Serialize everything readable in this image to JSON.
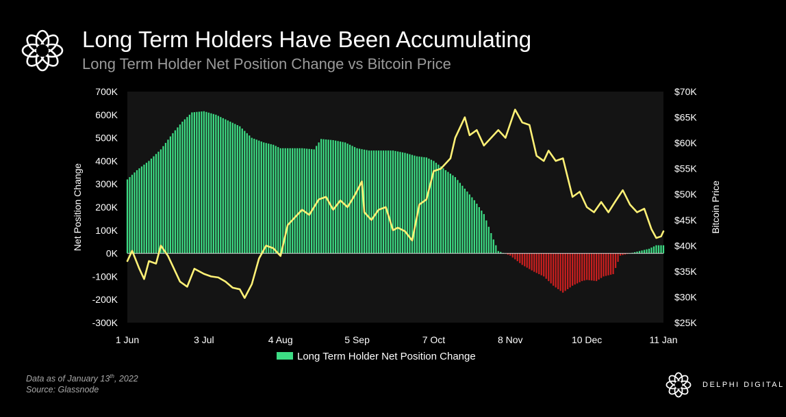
{
  "header": {
    "title": "Long Term Holders Have Been Accumulating",
    "subtitle": "Long Term Holder Net Position Change vs Bitcoin Price"
  },
  "footer": {
    "data_as_of_prefix": "Data as of January 13",
    "data_as_of_sup": "th",
    "data_as_of_suffix": ", 2022",
    "source": "Source:  Glassnode",
    "brand": "DELPHI DIGITAL"
  },
  "colors": {
    "background": "#000000",
    "plot_background": "#141414",
    "positive_bar": "#3ddc84",
    "negative_bar": "#cc1f1f",
    "price_line": "#fff176"
  },
  "icons": {
    "header_logo": "delphi-flower-icon",
    "footer_logo": "delphi-flower-icon"
  },
  "chart_data": {
    "type": "bar",
    "x_tick_labels": [
      "1 Jun",
      "3 Jul",
      "4 Aug",
      "5 Sep",
      "7 Oct",
      "8 Nov",
      "10 Dec",
      "11 Jan"
    ],
    "x_range": [
      "2021-06-01",
      "2022-01-11"
    ],
    "ylabel": "Net Position Change",
    "ylabel_right": "Bitcoin Price",
    "ylim": [
      -300000,
      700000
    ],
    "ylim_right": [
      25000,
      70000
    ],
    "y_tick_labels": [
      "700K",
      "600K",
      "500K",
      "400K",
      "300K",
      "200K",
      "100K",
      "0K",
      "-100K",
      "-200K",
      "-300K"
    ],
    "y_right_tick_labels": [
      "$70K",
      "$65K",
      "$60K",
      "$55K",
      "$50K",
      "$45K",
      "$40K",
      "$35K",
      "$30K",
      "$25K"
    ],
    "grid": false,
    "legend_position": "bottom",
    "series": [
      {
        "name": "Long Term Holder Net Position Change",
        "type": "bar",
        "axis": "left",
        "points": [
          [
            "2021-06-01",
            320000
          ],
          [
            "2021-06-05",
            360000
          ],
          [
            "2021-06-10",
            400000
          ],
          [
            "2021-06-15",
            450000
          ],
          [
            "2021-06-20",
            520000
          ],
          [
            "2021-06-24",
            570000
          ],
          [
            "2021-06-28",
            610000
          ],
          [
            "2021-07-03",
            615000
          ],
          [
            "2021-07-08",
            600000
          ],
          [
            "2021-07-13",
            575000
          ],
          [
            "2021-07-18",
            550000
          ],
          [
            "2021-07-23",
            500000
          ],
          [
            "2021-07-28",
            480000
          ],
          [
            "2021-08-01",
            470000
          ],
          [
            "2021-08-04",
            455000
          ],
          [
            "2021-08-08",
            455000
          ],
          [
            "2021-08-13",
            455000
          ],
          [
            "2021-08-18",
            450000
          ],
          [
            "2021-08-21",
            495000
          ],
          [
            "2021-08-26",
            490000
          ],
          [
            "2021-08-31",
            480000
          ],
          [
            "2021-09-05",
            455000
          ],
          [
            "2021-09-10",
            445000
          ],
          [
            "2021-09-15",
            445000
          ],
          [
            "2021-09-20",
            445000
          ],
          [
            "2021-09-25",
            435000
          ],
          [
            "2021-09-30",
            420000
          ],
          [
            "2021-10-04",
            415000
          ],
          [
            "2021-10-07",
            400000
          ],
          [
            "2021-10-12",
            360000
          ],
          [
            "2021-10-16",
            330000
          ],
          [
            "2021-10-20",
            280000
          ],
          [
            "2021-10-24",
            230000
          ],
          [
            "2021-10-28",
            170000
          ],
          [
            "2021-11-01",
            60000
          ],
          [
            "2021-11-03",
            10000
          ],
          [
            "2021-11-08",
            -10000
          ],
          [
            "2021-11-13",
            -50000
          ],
          [
            "2021-11-18",
            -80000
          ],
          [
            "2021-11-22",
            -100000
          ],
          [
            "2021-11-26",
            -140000
          ],
          [
            "2021-11-30",
            -170000
          ],
          [
            "2021-12-04",
            -140000
          ],
          [
            "2021-12-08",
            -120000
          ],
          [
            "2021-12-10",
            -115000
          ],
          [
            "2021-12-14",
            -120000
          ],
          [
            "2021-12-17",
            -100000
          ],
          [
            "2021-12-21",
            -90000
          ],
          [
            "2021-12-24",
            -10000
          ],
          [
            "2021-12-28",
            0
          ],
          [
            "2022-01-01",
            10000
          ],
          [
            "2022-01-05",
            20000
          ],
          [
            "2022-01-08",
            35000
          ],
          [
            "2022-01-11",
            35000
          ]
        ]
      },
      {
        "name": "Bitcoin Price",
        "type": "line",
        "axis": "right",
        "points": [
          [
            "2021-06-01",
            37000
          ],
          [
            "2021-06-03",
            39000
          ],
          [
            "2021-06-06",
            35500
          ],
          [
            "2021-06-08",
            33500
          ],
          [
            "2021-06-10",
            37000
          ],
          [
            "2021-06-13",
            36500
          ],
          [
            "2021-06-15",
            40000
          ],
          [
            "2021-06-18",
            38000
          ],
          [
            "2021-06-21",
            35000
          ],
          [
            "2021-06-23",
            33000
          ],
          [
            "2021-06-26",
            32000
          ],
          [
            "2021-06-29",
            35500
          ],
          [
            "2021-07-03",
            34500
          ],
          [
            "2021-07-06",
            34000
          ],
          [
            "2021-07-09",
            33800
          ],
          [
            "2021-07-12",
            33000
          ],
          [
            "2021-07-15",
            31800
          ],
          [
            "2021-07-18",
            31500
          ],
          [
            "2021-07-20",
            29800
          ],
          [
            "2021-07-23",
            32500
          ],
          [
            "2021-07-26",
            37500
          ],
          [
            "2021-07-29",
            40000
          ],
          [
            "2021-08-01",
            39500
          ],
          [
            "2021-08-04",
            38000
          ],
          [
            "2021-08-07",
            44000
          ],
          [
            "2021-08-10",
            45500
          ],
          [
            "2021-08-13",
            47000
          ],
          [
            "2021-08-16",
            46000
          ],
          [
            "2021-08-20",
            49000
          ],
          [
            "2021-08-23",
            49500
          ],
          [
            "2021-08-26",
            47000
          ],
          [
            "2021-08-29",
            48800
          ],
          [
            "2021-09-01",
            47500
          ],
          [
            "2021-09-04",
            49800
          ],
          [
            "2021-09-07",
            52500
          ],
          [
            "2021-09-08",
            46500
          ],
          [
            "2021-09-11",
            45000
          ],
          [
            "2021-09-14",
            47000
          ],
          [
            "2021-09-17",
            47500
          ],
          [
            "2021-09-20",
            43000
          ],
          [
            "2021-09-22",
            43500
          ],
          [
            "2021-09-25",
            42800
          ],
          [
            "2021-09-28",
            41000
          ],
          [
            "2021-10-01",
            48000
          ],
          [
            "2021-10-04",
            49000
          ],
          [
            "2021-10-07",
            54500
          ],
          [
            "2021-10-10",
            55000
          ],
          [
            "2021-10-14",
            57000
          ],
          [
            "2021-10-16",
            61000
          ],
          [
            "2021-10-20",
            65000
          ],
          [
            "2021-10-22",
            61500
          ],
          [
            "2021-10-25",
            62500
          ],
          [
            "2021-10-28",
            59500
          ],
          [
            "2021-10-31",
            61000
          ],
          [
            "2021-11-03",
            62500
          ],
          [
            "2021-11-06",
            61000
          ],
          [
            "2021-11-10",
            66500
          ],
          [
            "2021-11-13",
            64000
          ],
          [
            "2021-11-16",
            63500
          ],
          [
            "2021-11-19",
            57500
          ],
          [
            "2021-11-22",
            56500
          ],
          [
            "2021-11-24",
            58500
          ],
          [
            "2021-11-27",
            56500
          ],
          [
            "2021-11-30",
            57000
          ],
          [
            "2021-12-04",
            49500
          ],
          [
            "2021-12-07",
            50500
          ],
          [
            "2021-12-10",
            47500
          ],
          [
            "2021-12-13",
            46500
          ],
          [
            "2021-12-16",
            48500
          ],
          [
            "2021-12-19",
            46500
          ],
          [
            "2021-12-22",
            48700
          ],
          [
            "2021-12-25",
            50800
          ],
          [
            "2021-12-28",
            48000
          ],
          [
            "2021-12-31",
            46500
          ],
          [
            "2022-01-03",
            47200
          ],
          [
            "2022-01-06",
            43200
          ],
          [
            "2022-01-08",
            41500
          ],
          [
            "2022-01-10",
            41800
          ],
          [
            "2022-01-11",
            42800
          ]
        ]
      }
    ]
  }
}
